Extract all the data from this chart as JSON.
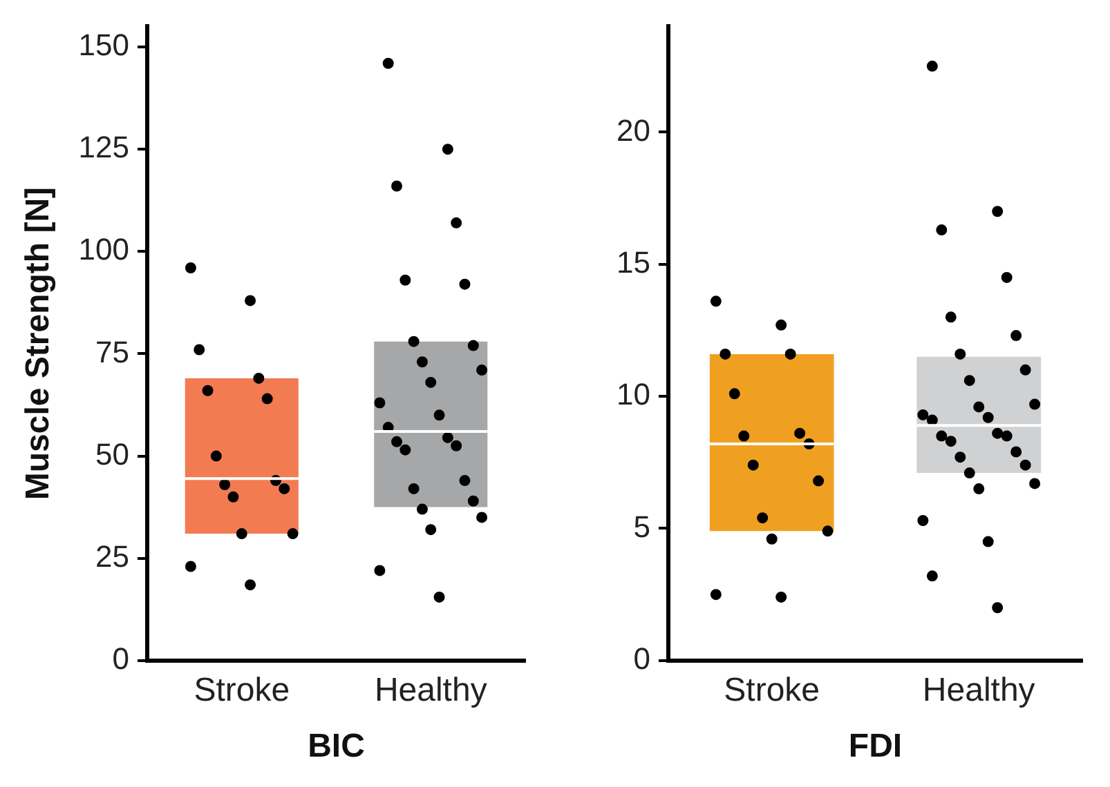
{
  "chart_data": [
    {
      "type": "box",
      "ylabel": "Muscle Strength [N]",
      "xlabel": "BIC",
      "categories": [
        "Stroke",
        "Healthy"
      ],
      "colors": [
        "#f27b52",
        "#a6a7a9"
      ],
      "boxes": [
        {
          "low": 31,
          "q1": 31,
          "median": 44.5,
          "q3": 69,
          "high": 69
        },
        {
          "low": 37.5,
          "q1": 37.5,
          "median": 56,
          "q3": 78,
          "high": 78
        }
      ],
      "ylim": [
        0,
        155
      ],
      "yticks": [
        0,
        25,
        50,
        75,
        100,
        125,
        150
      ],
      "grid": false,
      "legend": false,
      "marker": "circle",
      "series": [
        {
          "type": "scatter",
          "color": "#000000",
          "x": [
            "Stroke",
            "Stroke",
            "Stroke",
            "Stroke",
            "Stroke",
            "Stroke",
            "Stroke",
            "Stroke",
            "Stroke",
            "Stroke",
            "Stroke",
            "Stroke",
            "Stroke",
            "Stroke",
            "Stroke",
            "Healthy",
            "Healthy",
            "Healthy",
            "Healthy",
            "Healthy",
            "Healthy",
            "Healthy",
            "Healthy",
            "Healthy",
            "Healthy",
            "Healthy",
            "Healthy",
            "Healthy",
            "Healthy",
            "Healthy",
            "Healthy",
            "Healthy",
            "Healthy",
            "Healthy",
            "Healthy",
            "Healthy",
            "Healthy",
            "Healthy",
            "Healthy",
            "Healthy",
            "Healthy"
          ],
          "values": [
            96,
            88,
            76,
            69,
            66,
            64,
            50,
            44,
            43,
            42,
            40,
            31,
            31,
            23,
            18.5,
            146,
            125,
            116,
            107,
            93,
            92,
            78,
            77,
            73,
            71,
            68,
            63,
            60,
            57,
            54.5,
            53.5,
            52.5,
            51.5,
            44,
            42,
            39,
            37,
            35,
            32,
            22,
            15.5
          ]
        }
      ]
    },
    {
      "type": "box",
      "xlabel": "FDI",
      "categories": [
        "Stroke",
        "Healthy"
      ],
      "colors": [
        "#f0a020",
        "#d0d1d3"
      ],
      "boxes": [
        {
          "low": 4.9,
          "q1": 4.9,
          "median": 8.2,
          "q3": 11.6,
          "high": 11.6
        },
        {
          "low": 7.1,
          "q1": 7.1,
          "median": 8.9,
          "q3": 11.5,
          "high": 11.5
        }
      ],
      "ylim": [
        0,
        24
      ],
      "yticks": [
        0,
        5,
        10,
        15,
        20
      ],
      "grid": false,
      "legend": false,
      "marker": "circle",
      "series": [
        {
          "type": "scatter",
          "color": "#000000",
          "x": [
            "Stroke",
            "Stroke",
            "Stroke",
            "Stroke",
            "Stroke",
            "Stroke",
            "Stroke",
            "Stroke",
            "Stroke",
            "Stroke",
            "Stroke",
            "Stroke",
            "Stroke",
            "Stroke",
            "Stroke",
            "Healthy",
            "Healthy",
            "Healthy",
            "Healthy",
            "Healthy",
            "Healthy",
            "Healthy",
            "Healthy",
            "Healthy",
            "Healthy",
            "Healthy",
            "Healthy",
            "Healthy",
            "Healthy",
            "Healthy",
            "Healthy",
            "Healthy",
            "Healthy",
            "Healthy",
            "Healthy",
            "Healthy",
            "Healthy",
            "Healthy",
            "Healthy",
            "Healthy",
            "Healthy",
            "Healthy",
            "Healthy"
          ],
          "values": [
            13.6,
            12.7,
            11.6,
            11.6,
            10.1,
            8.6,
            8.5,
            8.2,
            7.4,
            6.8,
            5.4,
            4.9,
            4.6,
            2.5,
            2.4,
            22.5,
            17,
            16.3,
            14.5,
            13.0,
            12.3,
            11.6,
            11.0,
            10.6,
            9.7,
            9.6,
            9.3,
            9.2,
            9.1,
            8.6,
            8.5,
            8.5,
            8.3,
            7.9,
            7.7,
            7.4,
            7.1,
            6.7,
            6.5,
            5.3,
            4.5,
            3.2,
            2.0
          ]
        }
      ]
    }
  ]
}
